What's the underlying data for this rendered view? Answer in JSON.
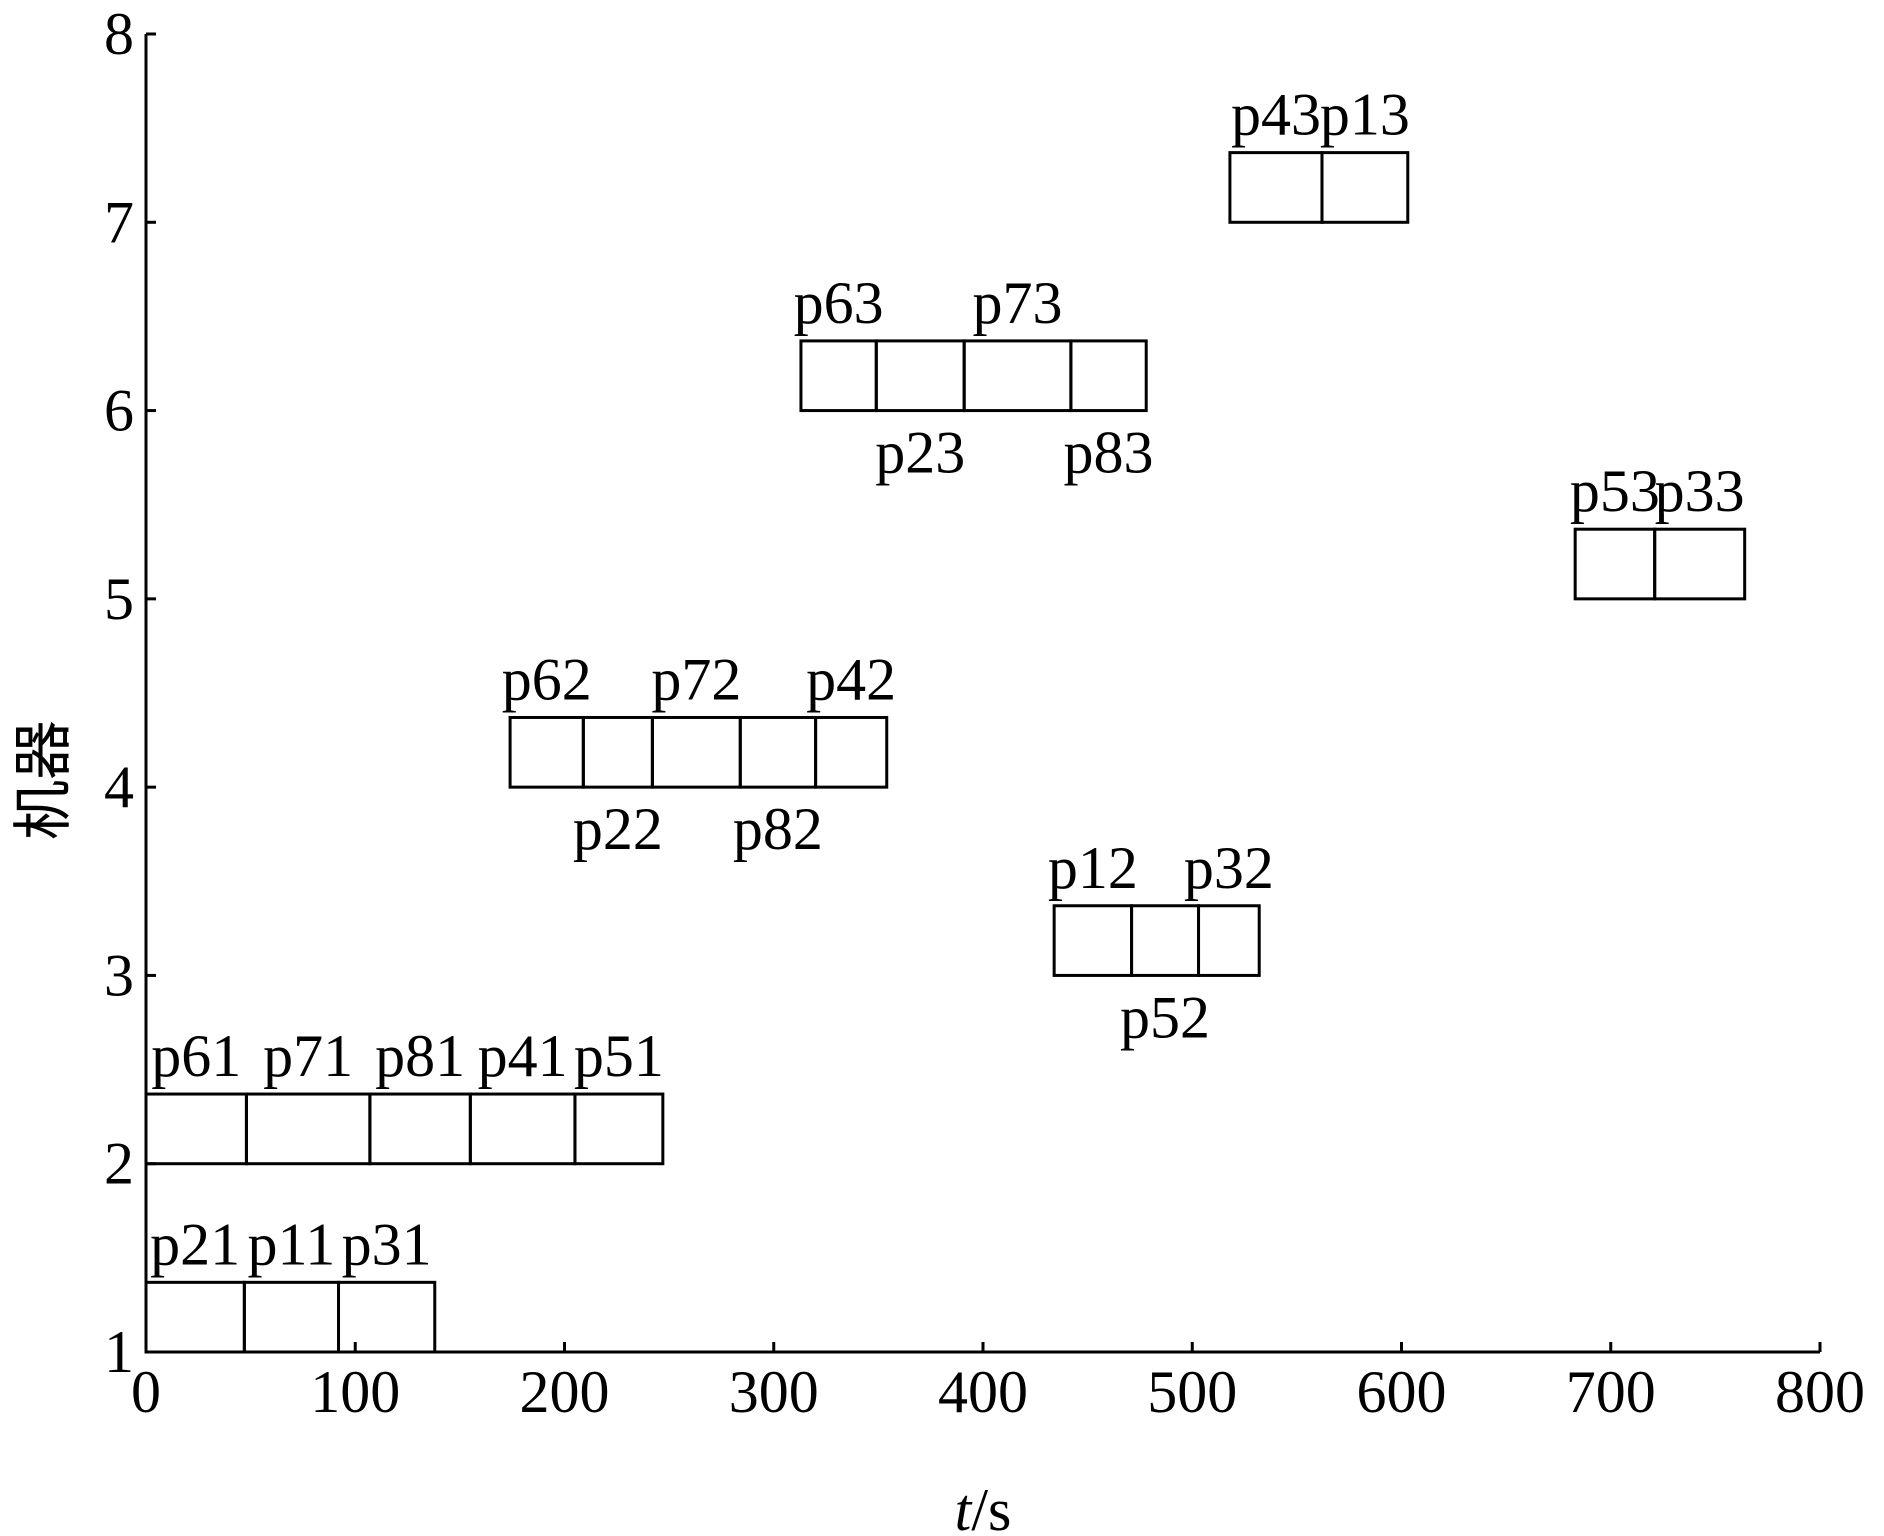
{
  "chart_data": {
    "type": "gantt",
    "xlabel": "t/s",
    "ylabel": "机器",
    "xlim": [
      0,
      800
    ],
    "xticks": [
      0,
      100,
      200,
      300,
      400,
      500,
      600,
      700,
      800
    ],
    "ylim": [
      1,
      8
    ],
    "yticks": [
      1,
      2,
      3,
      4,
      5,
      6,
      7,
      8
    ],
    "color": "#000000",
    "tasks": [
      {
        "name": "p21",
        "machine": 1,
        "start": 0,
        "end": 47
      },
      {
        "name": "p11",
        "machine": 1,
        "start": 47,
        "end": 92
      },
      {
        "name": "p31",
        "machine": 1,
        "start": 92,
        "end": 138
      },
      {
        "name": "p61",
        "machine": 2,
        "start": 0,
        "end": 48
      },
      {
        "name": "p71",
        "machine": 2,
        "start": 48,
        "end": 107
      },
      {
        "name": "p81",
        "machine": 2,
        "start": 107,
        "end": 155
      },
      {
        "name": "p41",
        "machine": 2,
        "start": 155,
        "end": 205
      },
      {
        "name": "p51",
        "machine": 2,
        "start": 205,
        "end": 247
      },
      {
        "name": "p12",
        "machine": 3,
        "start": 434,
        "end": 471
      },
      {
        "name": "p52",
        "machine": 3,
        "start": 471,
        "end": 503
      },
      {
        "name": "p32",
        "machine": 3,
        "start": 503,
        "end": 532
      },
      {
        "name": "p62",
        "machine": 4,
        "start": 174,
        "end": 209
      },
      {
        "name": "p22",
        "machine": 4,
        "start": 209,
        "end": 242
      },
      {
        "name": "p72",
        "machine": 4,
        "start": 242,
        "end": 284
      },
      {
        "name": "p82",
        "machine": 4,
        "start": 284,
        "end": 320
      },
      {
        "name": "p42",
        "machine": 4,
        "start": 320,
        "end": 354
      },
      {
        "name": "p53",
        "machine": 5,
        "start": 683,
        "end": 721
      },
      {
        "name": "p33",
        "machine": 5,
        "start": 721,
        "end": 764
      },
      {
        "name": "p63",
        "machine": 6,
        "start": 313,
        "end": 349
      },
      {
        "name": "p23",
        "machine": 6,
        "start": 349,
        "end": 391
      },
      {
        "name": "p73",
        "machine": 6,
        "start": 391,
        "end": 442
      },
      {
        "name": "p83",
        "machine": 6,
        "start": 442,
        "end": 478
      },
      {
        "name": "p43",
        "machine": 7,
        "start": 518,
        "end": 562
      },
      {
        "name": "p13",
        "machine": 7,
        "start": 562,
        "end": 603
      }
    ]
  }
}
